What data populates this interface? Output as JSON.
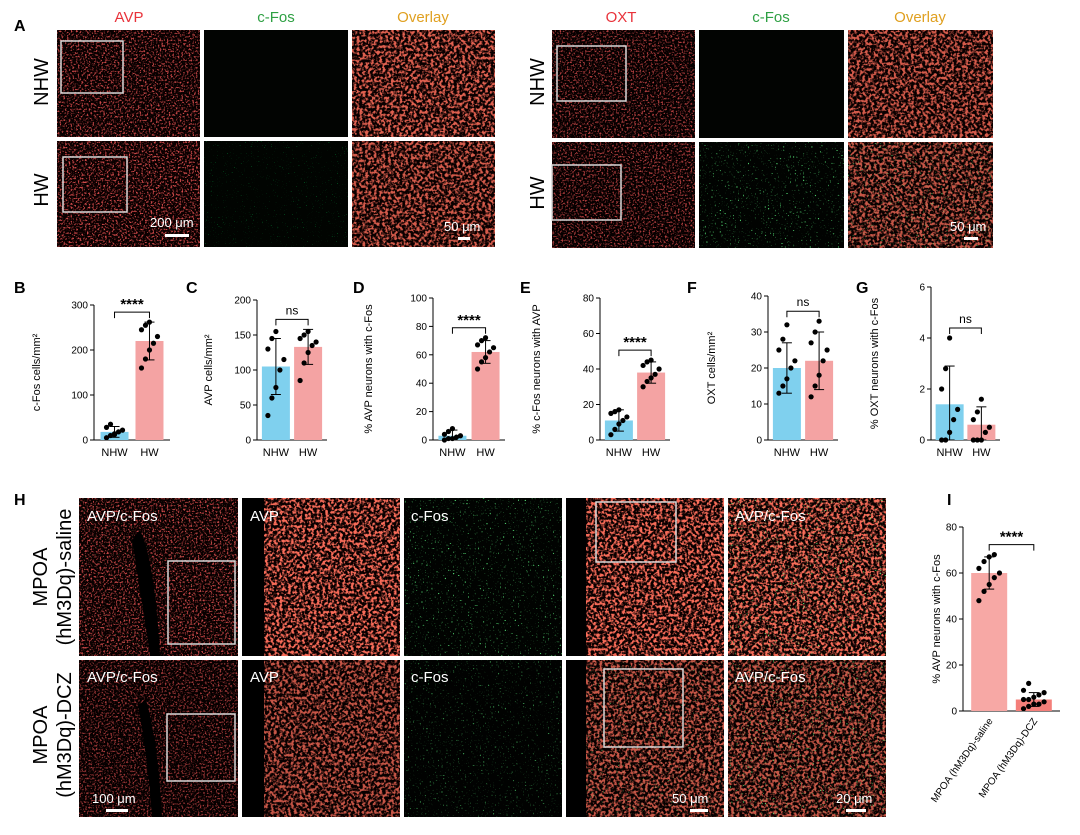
{
  "colors": {
    "avp_red": "#e8323a",
    "cfos_green": "#2ea043",
    "overlay_orange": "#e0a020",
    "nhw_bar": "#7fd0ee",
    "hw_bar": "#f4a3a3",
    "saline_bar": "#f7a8a5",
    "dcz_bar": "#f47f7a"
  },
  "panel_a": {
    "letter": "A",
    "left": {
      "headers": [
        "AVP",
        "c-Fos",
        "Overlay"
      ],
      "rows": [
        "NHW",
        "HW"
      ],
      "scalebars": [
        "200 μm",
        "50 μm"
      ]
    },
    "right": {
      "headers": [
        "OXT",
        "c-Fos",
        "Overlay"
      ],
      "rows": [
        "NHW",
        "HW"
      ],
      "scalebars": [
        "50 μm"
      ]
    }
  },
  "panel_h": {
    "letter": "H",
    "rows": [
      {
        "label_line1": "MPOA",
        "label_line2": "(hM3Dq)-saline",
        "tiles": [
          "AVP/c-Fos",
          "AVP",
          "c-Fos",
          "",
          "AVP/c-Fos"
        ]
      },
      {
        "label_line1": "MPOA",
        "label_line2": "(hM3Dq)-DCZ",
        "tiles": [
          "AVP/c-Fos",
          "AVP",
          "c-Fos",
          "",
          "AVP/c-Fos"
        ]
      }
    ],
    "scalebars": [
      "100 μm",
      "50 μm",
      "20 μm"
    ]
  },
  "chart_data": [
    {
      "letter": "B",
      "type": "bar",
      "categories": [
        "NHW",
        "HW"
      ],
      "values": [
        18,
        220
      ],
      "errors": [
        12,
        42
      ],
      "points": [
        [
          5,
          10,
          14,
          18,
          22,
          28,
          35,
          12
        ],
        [
          160,
          180,
          200,
          215,
          230,
          245,
          255,
          262
        ]
      ],
      "ylabel": "c-Fos cells/mm²",
      "ylim": [
        0,
        300
      ],
      "yticks": [
        0,
        100,
        200,
        300
      ],
      "significance": "****"
    },
    {
      "letter": "C",
      "type": "bar",
      "categories": [
        "NHW",
        "HW"
      ],
      "values": [
        105,
        133
      ],
      "errors": [
        40,
        25
      ],
      "points": [
        [
          35,
          60,
          75,
          100,
          115,
          130,
          145,
          155
        ],
        [
          85,
          110,
          125,
          135,
          140,
          145,
          150,
          155
        ]
      ],
      "ylabel": "AVP cells/mm²",
      "ylim": [
        0,
        200
      ],
      "yticks": [
        0,
        50,
        100,
        150,
        200
      ],
      "significance": "ns"
    },
    {
      "letter": "D",
      "type": "bar",
      "categories": [
        "NHW",
        "HW"
      ],
      "values": [
        3,
        62
      ],
      "errors": [
        4,
        8
      ],
      "points": [
        [
          0,
          1,
          1,
          2,
          3,
          4,
          6,
          8
        ],
        [
          50,
          55,
          58,
          62,
          65,
          67,
          70,
          72
        ]
      ],
      "ylabel": "% AVP neurons with c-Fos",
      "ylim": [
        0,
        100
      ],
      "yticks": [
        0,
        20,
        40,
        60,
        80,
        100
      ],
      "significance": "****"
    },
    {
      "letter": "E",
      "type": "bar",
      "categories": [
        "NHW",
        "HW"
      ],
      "values": [
        11,
        38
      ],
      "errors": [
        6,
        6
      ],
      "points": [
        [
          3,
          6,
          9,
          11,
          13,
          15,
          16,
          17
        ],
        [
          30,
          33,
          35,
          37,
          40,
          42,
          44,
          45
        ]
      ],
      "ylabel": "% c-Fos neurons with AVP",
      "ylim": [
        0,
        80
      ],
      "yticks": [
        0,
        20,
        40,
        60,
        80
      ],
      "significance": "****"
    },
    {
      "letter": "F",
      "type": "bar",
      "categories": [
        "NHW",
        "HW"
      ],
      "values": [
        20,
        22
      ],
      "errors": [
        7,
        8
      ],
      "points": [
        [
          13,
          15,
          17,
          20,
          22,
          25,
          28,
          32
        ],
        [
          12,
          15,
          18,
          22,
          25,
          27,
          30,
          33
        ]
      ],
      "ylabel": "OXT cells/mm²",
      "ylim": [
        0,
        40
      ],
      "yticks": [
        0,
        10,
        20,
        30,
        40
      ],
      "significance": "ns"
    },
    {
      "letter": "G",
      "type": "bar",
      "categories": [
        "NHW",
        "HW"
      ],
      "values": [
        1.4,
        0.6
      ],
      "errors": [
        1.5,
        0.7
      ],
      "points": [
        [
          0.0,
          0.0,
          0.3,
          0.8,
          1.2,
          2.0,
          2.8,
          4.0
        ],
        [
          0.0,
          0.0,
          0.0,
          0.3,
          0.5,
          0.8,
          1.1,
          1.6
        ]
      ],
      "ylabel": "% OXT neurons with c-Fos",
      "ylim": [
        0,
        6
      ],
      "yticks": [
        0,
        2,
        4,
        6
      ],
      "significance": "ns"
    },
    {
      "letter": "I",
      "type": "bar",
      "categories": [
        "MPOA (hM3Dq)-saline",
        "MPOA (hM3Dq)-DCZ"
      ],
      "values": [
        60,
        5
      ],
      "errors": [
        7,
        3
      ],
      "points": [
        [
          48,
          52,
          55,
          58,
          60,
          62,
          65,
          67,
          68
        ],
        [
          1,
          2,
          3,
          3,
          4,
          5,
          5,
          6,
          7,
          8,
          9,
          12
        ]
      ],
      "ylabel": "% AVP neurons with c-Fos",
      "ylim": [
        0,
        80
      ],
      "yticks": [
        0,
        20,
        40,
        60,
        80
      ],
      "significance": "****"
    }
  ]
}
